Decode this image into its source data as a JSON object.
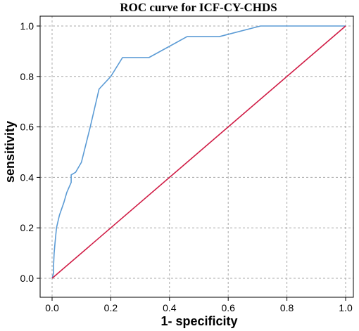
{
  "chart_data": {
    "type": "line",
    "title": "ROC curve for ICF-CY-CHDS",
    "xlabel": "1- specificity",
    "ylabel": "sensitivity",
    "xlim": [
      0,
      1
    ],
    "ylim": [
      0,
      1
    ],
    "x_ticks": [
      "0.0",
      "0.2",
      "0.4",
      "0.6",
      "0.8",
      "1.0"
    ],
    "y_ticks": [
      "0.0",
      "0.2",
      "0.4",
      "0.6",
      "0.8",
      "1.0"
    ],
    "grid": true,
    "series": [
      {
        "color": "#5b9bd5",
        "points": [
          [
            0.0,
            0.0
          ],
          [
            0.005,
            0.02
          ],
          [
            0.005,
            0.05
          ],
          [
            0.007,
            0.1
          ],
          [
            0.01,
            0.14
          ],
          [
            0.015,
            0.2
          ],
          [
            0.025,
            0.25
          ],
          [
            0.04,
            0.3
          ],
          [
            0.05,
            0.34
          ],
          [
            0.065,
            0.38
          ],
          [
            0.065,
            0.41
          ],
          [
            0.08,
            0.42
          ],
          [
            0.1,
            0.46
          ],
          [
            0.13,
            0.6
          ],
          [
            0.16,
            0.75
          ],
          [
            0.2,
            0.8
          ],
          [
            0.24,
            0.875
          ],
          [
            0.33,
            0.875
          ],
          [
            0.46,
            0.958
          ],
          [
            0.57,
            0.958
          ],
          [
            0.71,
            1.0
          ],
          [
            1.0,
            1.0
          ]
        ]
      },
      {
        "color": "#d01c45",
        "points": [
          [
            0.0,
            0.0
          ],
          [
            1.0,
            1.0
          ]
        ]
      }
    ]
  }
}
